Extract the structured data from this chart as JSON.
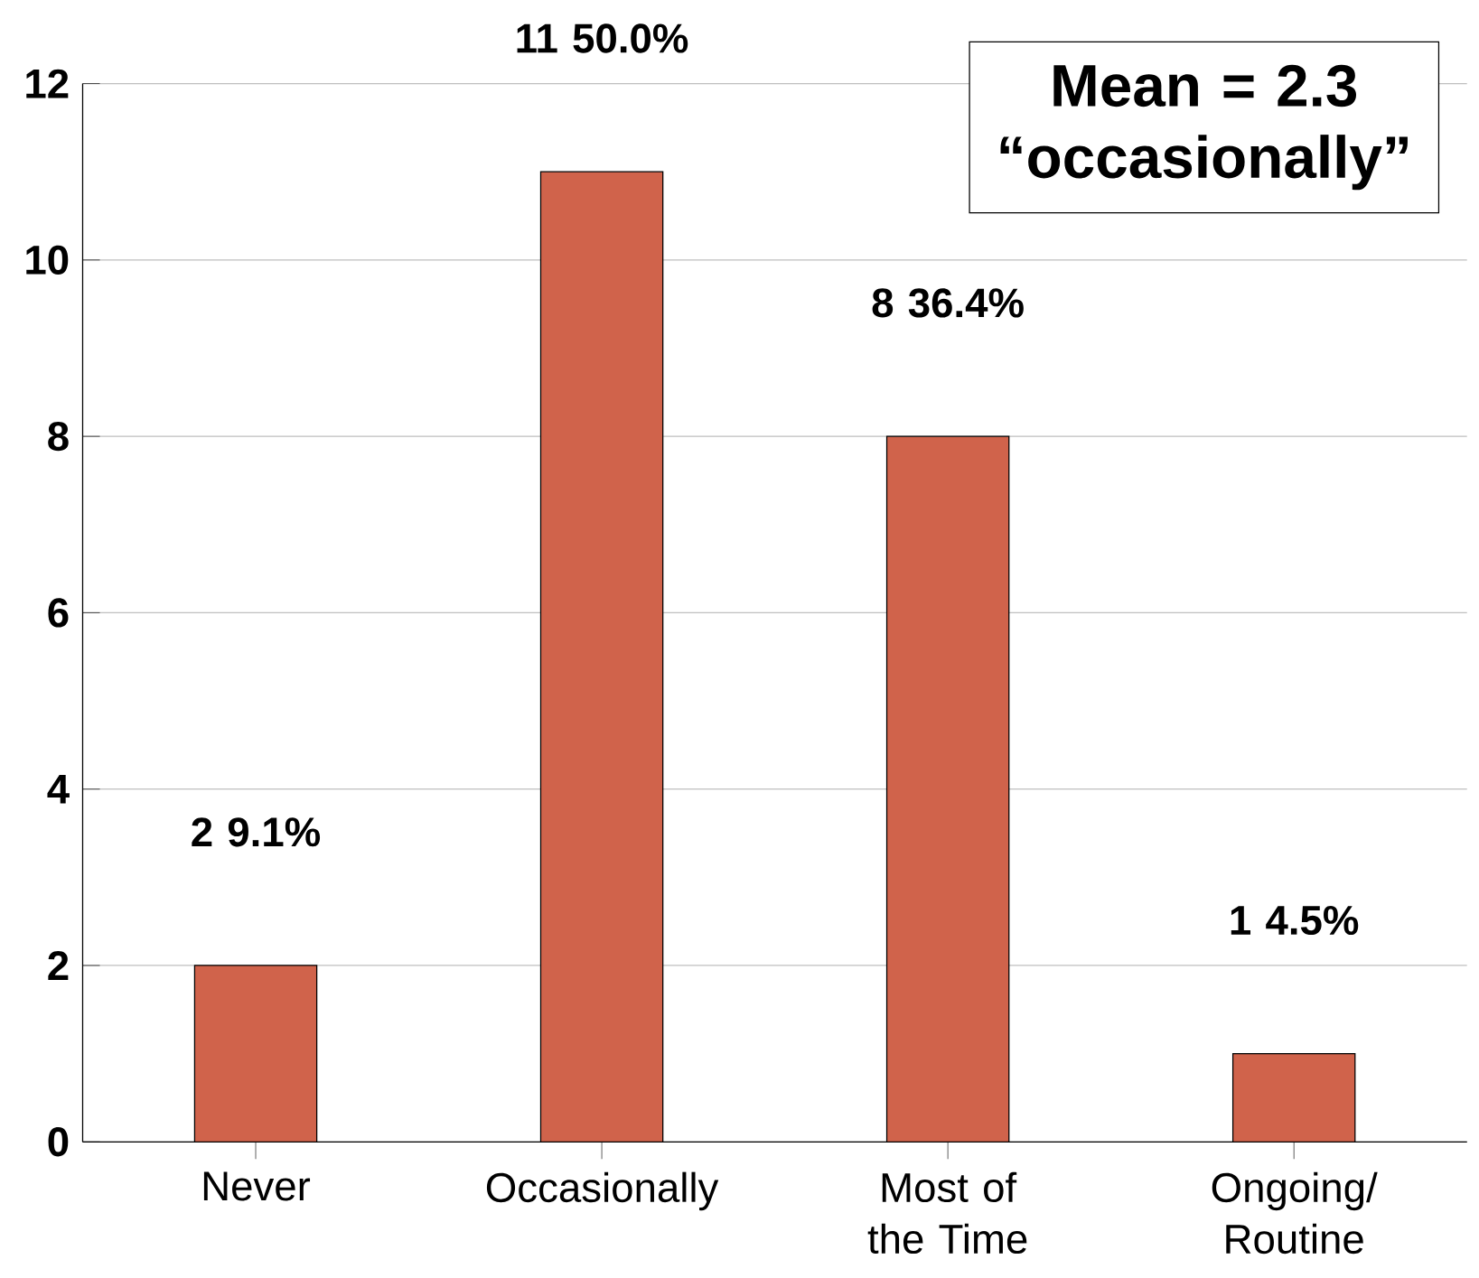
{
  "chart_data": {
    "type": "bar",
    "categories": [
      "Never",
      "Occasionally",
      "Most of the Time",
      "Ongoing/ Routine"
    ],
    "values": [
      2,
      11,
      8,
      1
    ],
    "color": "#d0634b",
    "value_labels": [
      "2 9.1%",
      "11 50.0%",
      "8 36.4%",
      "1 4.5%"
    ],
    "ylim": [
      0,
      12
    ],
    "yticks": [
      0,
      2,
      4,
      6,
      8,
      10,
      12
    ],
    "grid": "y",
    "annotations": [
      "Mean = 2.3 “occasionally”"
    ]
  }
}
